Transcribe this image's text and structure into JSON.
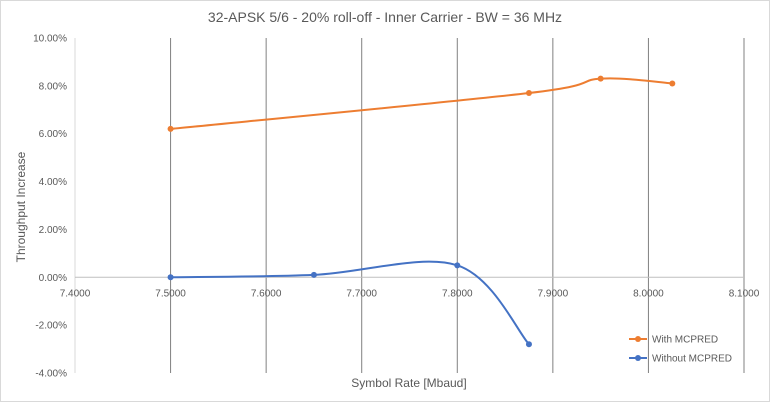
{
  "chart_data": {
    "type": "line",
    "title": "32-APSK 5/6 - 20% roll-off - Inner Carrier - BW = 36 MHz",
    "xlabel": "Symbol Rate [Mbaud]",
    "ylabel": "Throughput Increase",
    "xlim": [
      7.4,
      8.1
    ],
    "ylim": [
      -0.04,
      0.1
    ],
    "x_ticks": [
      7.4,
      7.5,
      7.6,
      7.7,
      7.8,
      7.9,
      8.0,
      8.1
    ],
    "x_tick_labels": [
      "7.4000",
      "7.5000",
      "7.6000",
      "7.7000",
      "7.8000",
      "7.9000",
      "8.0000",
      "8.1000"
    ],
    "y_ticks": [
      -0.04,
      -0.02,
      0.0,
      0.02,
      0.04,
      0.06,
      0.08,
      0.1
    ],
    "y_tick_labels": [
      "-4.00%",
      "-2.00%",
      "0.00%",
      "2.00%",
      "4.00%",
      "6.00%",
      "8.00%",
      "10.00%"
    ],
    "grid": {
      "vertical": true,
      "horizontal": false
    },
    "legend_position": "bottom-right",
    "series": [
      {
        "name": "With MCPRED",
        "color": "#ED7D31",
        "points": [
          [
            7.5,
            0.062
          ],
          [
            7.875,
            0.077
          ],
          [
            7.95,
            0.083
          ],
          [
            8.025,
            0.081
          ]
        ]
      },
      {
        "name": "Without MCPRED",
        "color": "#4472C4",
        "points": [
          [
            7.5,
            0.0
          ],
          [
            7.65,
            0.001
          ],
          [
            7.8,
            0.005
          ],
          [
            7.875,
            -0.028
          ]
        ]
      }
    ]
  }
}
